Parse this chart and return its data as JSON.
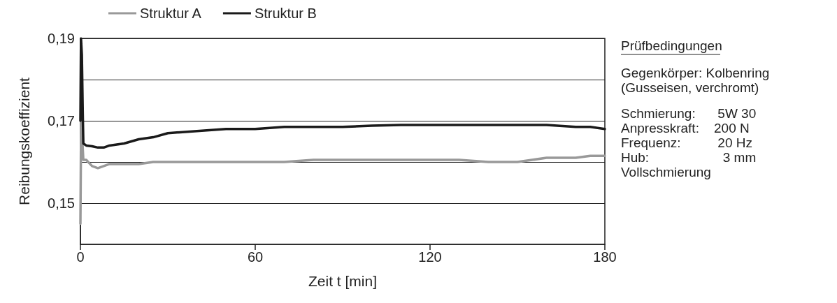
{
  "chart_data": {
    "type": "line",
    "xlabel": "Zeit t [min]",
    "ylabel": "Reibungskoeffizient",
    "xlim": [
      0,
      180
    ],
    "xticks": [
      0,
      60,
      120,
      180
    ],
    "ylim": [
      0.14,
      0.19
    ],
    "yticks": [
      {
        "value": 0.15,
        "label": "0,15"
      },
      {
        "value": 0.16,
        "label": null
      },
      {
        "value": 0.17,
        "label": "0,17"
      },
      {
        "value": 0.18,
        "label": null
      },
      {
        "value": 0.19,
        "label": "0,19"
      }
    ],
    "grid": "y",
    "legend": "top left",
    "marker": "none",
    "line_style": "solid",
    "series": [
      {
        "name": "Struktur A",
        "color": "#999999",
        "x": [
          0,
          0.3,
          0.6,
          1,
          2,
          4,
          6,
          8,
          10,
          15,
          20,
          25,
          30,
          40,
          50,
          60,
          70,
          80,
          90,
          100,
          110,
          120,
          130,
          140,
          150,
          155,
          160,
          170,
          175,
          180
        ],
        "values": [
          0.145,
          0.176,
          0.166,
          0.1605,
          0.1605,
          0.159,
          0.1585,
          0.159,
          0.1595,
          0.1595,
          0.1595,
          0.16,
          0.16,
          0.16,
          0.16,
          0.16,
          0.16,
          0.1605,
          0.1605,
          0.1605,
          0.1605,
          0.1605,
          0.1605,
          0.16,
          0.16,
          0.1605,
          0.161,
          0.161,
          0.1615,
          0.1615
        ]
      },
      {
        "name": "Struktur B",
        "color": "#1a1a1a",
        "x": [
          0,
          0.2,
          0.5,
          0.8,
          1,
          2,
          4,
          6,
          8,
          10,
          15,
          20,
          25,
          30,
          40,
          50,
          60,
          70,
          80,
          90,
          100,
          110,
          120,
          130,
          140,
          150,
          160,
          170,
          175,
          180
        ],
        "values": [
          0.17,
          0.19,
          0.186,
          0.172,
          0.1645,
          0.164,
          0.1638,
          0.1635,
          0.1635,
          0.164,
          0.1645,
          0.1655,
          0.166,
          0.167,
          0.1675,
          0.168,
          0.168,
          0.1685,
          0.1685,
          0.1685,
          0.1688,
          0.169,
          0.169,
          0.169,
          0.169,
          0.169,
          0.169,
          0.1685,
          0.1685,
          0.168
        ]
      }
    ],
    "annotations": [
      "Prüfbedingungen",
      "Gegenkörper: Kolbenring",
      "(Gusseisen, verchromt)",
      "Schmierung:      5W 30",
      "Anpresskraft:    200 N",
      "Frequenz:          20 Hz",
      "Hub:                    3 mm",
      "Vollschmierung"
    ]
  }
}
